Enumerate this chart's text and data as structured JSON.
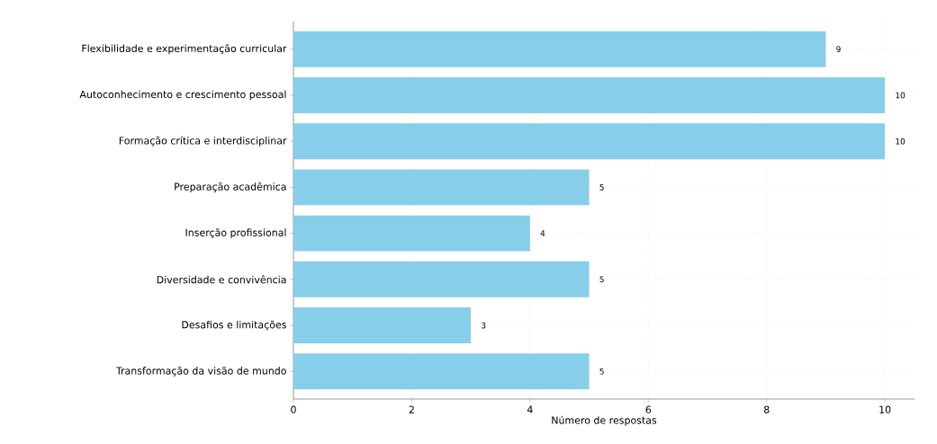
{
  "chart_data": {
    "type": "bar",
    "orientation": "horizontal",
    "xlabel": "Número de respostas",
    "categories": [
      "Flexibilidade e experimentação curricular",
      "Autoconhecimento e crescimento pessoal",
      "Formação crítica e interdisciplinar",
      "Preparação acadêmica",
      "Inserção profissional",
      "Diversidade e convivência",
      "Desafios e limitações",
      "Transformação da visão de mundo"
    ],
    "values": [
      9,
      10,
      10,
      5,
      4,
      5,
      3,
      5
    ],
    "color": "#87ceeb",
    "data_labels": true,
    "xlim": [
      0,
      10.5
    ],
    "xticks": [
      0,
      2,
      4,
      6,
      8,
      10
    ],
    "grid": true
  }
}
